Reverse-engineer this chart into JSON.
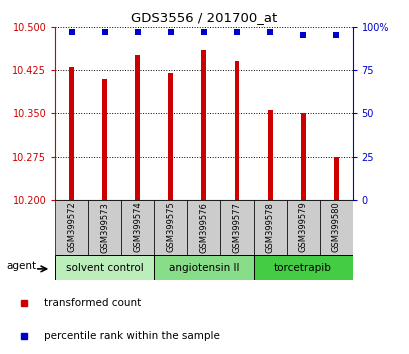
{
  "title": "GDS3556 / 201700_at",
  "samples": [
    "GSM399572",
    "GSM399573",
    "GSM399574",
    "GSM399575",
    "GSM399576",
    "GSM399577",
    "GSM399578",
    "GSM399579",
    "GSM399580"
  ],
  "transformed_count": [
    10.43,
    10.41,
    10.45,
    10.42,
    10.46,
    10.44,
    10.355,
    10.35,
    10.275
  ],
  "percentile_rank": [
    97,
    97,
    97,
    97,
    97,
    97,
    97,
    95,
    95
  ],
  "ylim_left": [
    10.2,
    10.5
  ],
  "ylim_right": [
    0,
    100
  ],
  "yticks_left": [
    10.2,
    10.275,
    10.35,
    10.425,
    10.5
  ],
  "yticks_right": [
    0,
    25,
    50,
    75,
    100
  ],
  "bar_color": "#cc0000",
  "dot_color": "#0000cc",
  "groups": [
    {
      "label": "solvent control",
      "indices": [
        0,
        1,
        2
      ],
      "color": "#bbeebb"
    },
    {
      "label": "angiotensin II",
      "indices": [
        3,
        4,
        5
      ],
      "color": "#88dd88"
    },
    {
      "label": "torcetrapib",
      "indices": [
        6,
        7,
        8
      ],
      "color": "#44cc44"
    }
  ],
  "agent_label": "agent",
  "legend_red": "transformed count",
  "legend_blue": "percentile rank within the sample",
  "left_tick_color": "#cc0000",
  "right_tick_color": "#0000cc"
}
